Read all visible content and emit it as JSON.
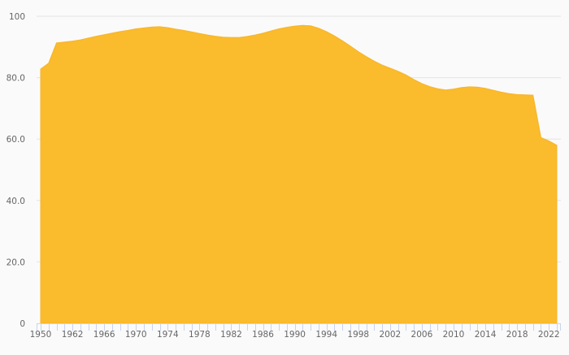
{
  "chart_data": {
    "type": "area",
    "title": "",
    "xlabel": "",
    "ylabel": "",
    "ylim": [
      0,
      100
    ],
    "y_ticks": [
      "0",
      "20.0",
      "40.0",
      "60.0",
      "80.0",
      "100"
    ],
    "y_tick_values": [
      0,
      20,
      40,
      60,
      80,
      100
    ],
    "x_tick_labels": [
      "1950",
      "1962",
      "1966",
      "1970",
      "1974",
      "1978",
      "1982",
      "1986",
      "1990",
      "1994",
      "1998",
      "2002",
      "2006",
      "2010",
      "2014",
      "2018",
      "2022"
    ],
    "x_tick_label_every": 4,
    "grid": true,
    "fill_color": "#fabb2c",
    "values": [
      82.8,
      84.7,
      91.3,
      91.6,
      91.9,
      92.3,
      92.9,
      93.5,
      94.0,
      94.5,
      95.0,
      95.4,
      95.9,
      96.2,
      96.5,
      96.6,
      96.3,
      95.8,
      95.4,
      94.9,
      94.4,
      93.9,
      93.5,
      93.2,
      93.1,
      93.1,
      93.4,
      93.9,
      94.5,
      95.2,
      95.9,
      96.4,
      96.8,
      97.0,
      96.9,
      96.1,
      95.0,
      93.6,
      92.0,
      90.3,
      88.5,
      86.9,
      85.4,
      84.1,
      83.1,
      82.1,
      80.9,
      79.4,
      78.1,
      77.1,
      76.4,
      76.0,
      76.3,
      76.8,
      77.0,
      76.9,
      76.5,
      75.9,
      75.3,
      74.8,
      74.5,
      74.4,
      74.3,
      60.5,
      59.4,
      58.0
    ]
  }
}
